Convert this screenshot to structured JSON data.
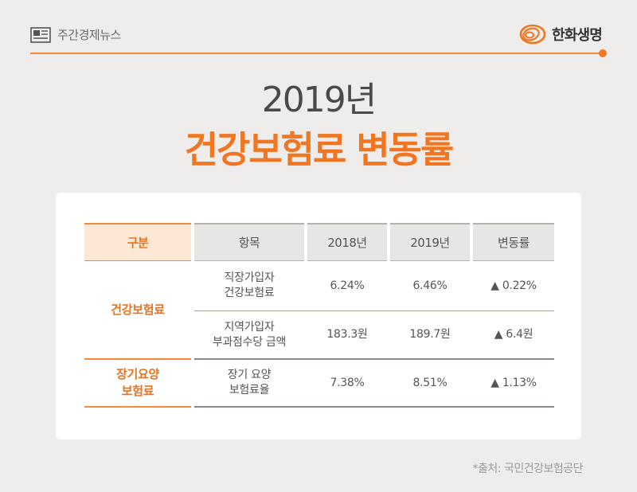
{
  "header": {
    "section_label": "주간경제뉴스",
    "brand_name": "한화생명"
  },
  "title": {
    "year": "2019년",
    "main": "건강보험료 변동률"
  },
  "table": {
    "columns": [
      "구분",
      "항목",
      "2018년",
      "2019년",
      "변동률"
    ],
    "groups": [
      {
        "category": "건강보험료",
        "rows": [
          {
            "item": "직장가입자\n건강보험료",
            "y2018": "6.24%",
            "y2019": "6.46%",
            "change": "▲ 0.22%"
          },
          {
            "item": "지역가입자\n부과점수당 금액",
            "y2018": "183.3원",
            "y2019": "189.7원",
            "change": "▲ 6.4원"
          }
        ]
      },
      {
        "category": "장기요양\n보험료",
        "rows": [
          {
            "item": "장기 요양\n보험료율",
            "y2018": "7.38%",
            "y2019": "8.51%",
            "change": "▲ 1.13%"
          }
        ]
      }
    ]
  },
  "source": "*출처: 국민건강보험공단",
  "colors": {
    "accent": "#f07622",
    "background": "#eeedec"
  }
}
